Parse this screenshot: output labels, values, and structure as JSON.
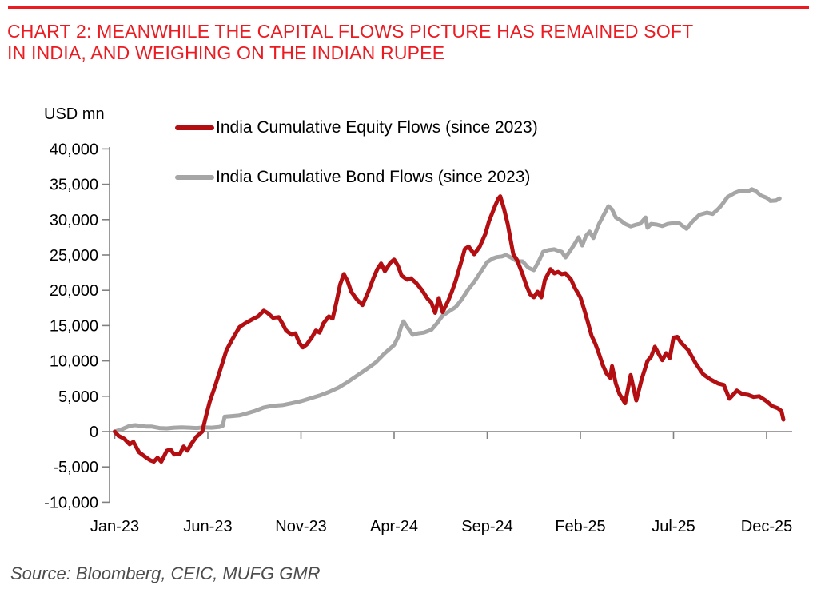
{
  "header": {
    "rule_color": "#ec1b21"
  },
  "title": {
    "line1": "CHART 2: MEANWHILE THE CAPITAL FLOWS PICTURE HAS REMAINED SOFT",
    "line2": "IN INDIA, AND WEIGHING ON THE INDIAN RUPEE",
    "color": "#ec1b21"
  },
  "chart_data": {
    "type": "line",
    "unit_label": "USD mn",
    "grid": "off",
    "legend_position": "top",
    "y_axis": {
      "range": [
        -10000,
        40000
      ],
      "tick_values": [
        40000,
        35000,
        30000,
        25000,
        20000,
        15000,
        10000,
        5000,
        0,
        -5000,
        -10000
      ],
      "tick_labels": [
        "40,000",
        "35,000",
        "30,000",
        "25,000",
        "20,000",
        "15,000",
        "10,000",
        "5,000",
        "0",
        "-5,000",
        "-10,000"
      ]
    },
    "x_axis": {
      "unit": "months since Jan-2023",
      "tick_months": [
        0,
        5,
        10,
        15,
        20,
        25,
        30,
        35
      ],
      "tick_labels": [
        "Jan-23",
        "Jun-23",
        "Nov-23",
        "Apr-24",
        "Sep-24",
        "Feb-25",
        "Jul-25",
        "Dec-25"
      ]
    },
    "legend": [
      {
        "label": "India Cumulative Equity Flows (since 2023)",
        "color": "#b30e12"
      },
      {
        "label": "India Cumulative Bond Flows (since 2023)",
        "color": "#a6a6a6"
      }
    ],
    "series": [
      {
        "name": "India Cumulative Equity Flows (since 2023)",
        "color": "#b30e12",
        "points": [
          [
            0,
            0
          ],
          [
            0.2,
            -600
          ],
          [
            0.5,
            -1000
          ],
          [
            0.8,
            -1800
          ],
          [
            1.0,
            -1450
          ],
          [
            1.3,
            -2900
          ],
          [
            1.6,
            -3500
          ],
          [
            1.9,
            -4050
          ],
          [
            2.1,
            -4250
          ],
          [
            2.3,
            -3700
          ],
          [
            2.5,
            -4250
          ],
          [
            2.8,
            -2700
          ],
          [
            3.0,
            -2550
          ],
          [
            3.2,
            -3250
          ],
          [
            3.5,
            -3150
          ],
          [
            3.7,
            -2100
          ],
          [
            3.9,
            -2700
          ],
          [
            4.1,
            -1800
          ],
          [
            4.4,
            -700
          ],
          [
            4.7,
            0
          ],
          [
            4.9,
            2200
          ],
          [
            5.1,
            4200
          ],
          [
            5.4,
            6500
          ],
          [
            5.7,
            9000
          ],
          [
            6.0,
            11500
          ],
          [
            6.3,
            13000
          ],
          [
            6.7,
            14800
          ],
          [
            7.0,
            15300
          ],
          [
            7.4,
            15900
          ],
          [
            7.7,
            16300
          ],
          [
            8.0,
            17100
          ],
          [
            8.2,
            16800
          ],
          [
            8.5,
            16100
          ],
          [
            8.8,
            16200
          ],
          [
            9.0,
            15300
          ],
          [
            9.2,
            14300
          ],
          [
            9.5,
            13700
          ],
          [
            9.7,
            13900
          ],
          [
            9.9,
            12600
          ],
          [
            10.1,
            11900
          ],
          [
            10.3,
            12300
          ],
          [
            10.6,
            13400
          ],
          [
            10.8,
            14300
          ],
          [
            11.0,
            14000
          ],
          [
            11.2,
            15300
          ],
          [
            11.5,
            16300
          ],
          [
            11.7,
            16000
          ],
          [
            11.9,
            18300
          ],
          [
            12.1,
            20800
          ],
          [
            12.3,
            22300
          ],
          [
            12.5,
            21300
          ],
          [
            12.7,
            19800
          ],
          [
            13.0,
            18700
          ],
          [
            13.3,
            17900
          ],
          [
            13.6,
            19700
          ],
          [
            13.9,
            21800
          ],
          [
            14.1,
            23000
          ],
          [
            14.3,
            23800
          ],
          [
            14.5,
            22700
          ],
          [
            14.8,
            23900
          ],
          [
            15.0,
            24350
          ],
          [
            15.2,
            23500
          ],
          [
            15.4,
            22100
          ],
          [
            15.7,
            21500
          ],
          [
            15.9,
            21700
          ],
          [
            16.2,
            21000
          ],
          [
            16.5,
            20000
          ],
          [
            16.8,
            18800
          ],
          [
            17.0,
            18250
          ],
          [
            17.2,
            16800
          ],
          [
            17.4,
            18900
          ],
          [
            17.6,
            16900
          ],
          [
            17.9,
            18500
          ],
          [
            18.1,
            19800
          ],
          [
            18.3,
            21300
          ],
          [
            18.6,
            24000
          ],
          [
            18.8,
            25850
          ],
          [
            19.0,
            26200
          ],
          [
            19.3,
            25100
          ],
          [
            19.6,
            26200
          ],
          [
            19.9,
            28000
          ],
          [
            20.1,
            29800
          ],
          [
            20.4,
            31800
          ],
          [
            20.6,
            33000
          ],
          [
            20.7,
            33300
          ],
          [
            20.9,
            31500
          ],
          [
            21.1,
            29400
          ],
          [
            21.3,
            26500
          ],
          [
            21.4,
            25100
          ],
          [
            21.6,
            24300
          ],
          [
            21.9,
            22250
          ],
          [
            22.1,
            20700
          ],
          [
            22.3,
            19450
          ],
          [
            22.5,
            19000
          ],
          [
            22.7,
            19800
          ],
          [
            22.9,
            19000
          ],
          [
            23.1,
            21500
          ],
          [
            23.4,
            23000
          ],
          [
            23.6,
            22400
          ],
          [
            23.8,
            22600
          ],
          [
            24.0,
            22300
          ],
          [
            24.2,
            22400
          ],
          [
            24.5,
            21500
          ],
          [
            24.7,
            20350
          ],
          [
            25.0,
            19000
          ],
          [
            25.2,
            17300
          ],
          [
            25.4,
            15500
          ],
          [
            25.6,
            13550
          ],
          [
            25.8,
            12450
          ],
          [
            26.0,
            11000
          ],
          [
            26.2,
            9400
          ],
          [
            26.4,
            8250
          ],
          [
            26.6,
            7600
          ],
          [
            26.7,
            9250
          ],
          [
            26.9,
            6800
          ],
          [
            27.1,
            5300
          ],
          [
            27.4,
            4000
          ],
          [
            27.7,
            8000
          ],
          [
            28.0,
            4400
          ],
          [
            28.3,
            7500
          ],
          [
            28.6,
            10000
          ],
          [
            28.8,
            10600
          ],
          [
            29.0,
            12000
          ],
          [
            29.2,
            11000
          ],
          [
            29.4,
            10100
          ],
          [
            29.6,
            11100
          ],
          [
            29.8,
            10400
          ],
          [
            30.0,
            13300
          ],
          [
            30.2,
            13400
          ],
          [
            30.4,
            12600
          ],
          [
            30.8,
            11500
          ],
          [
            31.2,
            9600
          ],
          [
            31.6,
            8100
          ],
          [
            32.0,
            7350
          ],
          [
            32.4,
            6800
          ],
          [
            32.7,
            6600
          ],
          [
            33.0,
            4650
          ],
          [
            33.4,
            5800
          ],
          [
            33.7,
            5300
          ],
          [
            34.0,
            5200
          ],
          [
            34.3,
            4900
          ],
          [
            34.6,
            5000
          ],
          [
            35.0,
            4300
          ],
          [
            35.3,
            3600
          ],
          [
            35.6,
            3300
          ],
          [
            35.8,
            2900
          ],
          [
            35.9,
            1700
          ]
        ]
      },
      {
        "name": "India Cumulative Bond Flows (since 2023)",
        "color": "#a6a6a6",
        "points": [
          [
            0,
            0
          ],
          [
            0.4,
            350
          ],
          [
            0.8,
            800
          ],
          [
            1.1,
            900
          ],
          [
            1.4,
            800
          ],
          [
            1.7,
            700
          ],
          [
            2.0,
            700
          ],
          [
            2.4,
            500
          ],
          [
            2.8,
            450
          ],
          [
            3.2,
            550
          ],
          [
            3.6,
            600
          ],
          [
            4.0,
            550
          ],
          [
            4.4,
            500
          ],
          [
            4.8,
            600
          ],
          [
            5.2,
            550
          ],
          [
            5.6,
            650
          ],
          [
            5.8,
            800
          ],
          [
            5.9,
            2100
          ],
          [
            6.3,
            2200
          ],
          [
            6.7,
            2300
          ],
          [
            7.0,
            2500
          ],
          [
            7.5,
            2900
          ],
          [
            8.0,
            3400
          ],
          [
            8.5,
            3650
          ],
          [
            9.0,
            3750
          ],
          [
            9.5,
            4000
          ],
          [
            10.0,
            4300
          ],
          [
            10.5,
            4700
          ],
          [
            11.0,
            5100
          ],
          [
            11.5,
            5600
          ],
          [
            12.0,
            6200
          ],
          [
            12.5,
            7000
          ],
          [
            13.0,
            7900
          ],
          [
            13.5,
            8800
          ],
          [
            14.0,
            9750
          ],
          [
            14.5,
            11100
          ],
          [
            15.0,
            12250
          ],
          [
            15.2,
            13300
          ],
          [
            15.4,
            15000
          ],
          [
            15.5,
            15600
          ],
          [
            15.7,
            14800
          ],
          [
            16.0,
            13700
          ],
          [
            16.3,
            13900
          ],
          [
            16.6,
            14000
          ],
          [
            17.0,
            14400
          ],
          [
            17.3,
            15300
          ],
          [
            17.6,
            16400
          ],
          [
            18.0,
            17100
          ],
          [
            18.3,
            17600
          ],
          [
            18.6,
            18600
          ],
          [
            19.0,
            20200
          ],
          [
            19.3,
            21200
          ],
          [
            19.6,
            22400
          ],
          [
            20.0,
            24000
          ],
          [
            20.3,
            24500
          ],
          [
            20.5,
            24700
          ],
          [
            20.8,
            24800
          ],
          [
            21.0,
            25000
          ],
          [
            21.3,
            24600
          ],
          [
            21.6,
            24100
          ],
          [
            21.9,
            24100
          ],
          [
            22.2,
            23200
          ],
          [
            22.5,
            22850
          ],
          [
            22.8,
            24300
          ],
          [
            23.0,
            25450
          ],
          [
            23.3,
            25700
          ],
          [
            23.6,
            25800
          ],
          [
            23.8,
            25600
          ],
          [
            24.0,
            25450
          ],
          [
            24.2,
            24650
          ],
          [
            24.5,
            25800
          ],
          [
            24.7,
            26600
          ],
          [
            24.9,
            27500
          ],
          [
            25.1,
            26350
          ],
          [
            25.3,
            27700
          ],
          [
            25.5,
            28300
          ],
          [
            25.7,
            27400
          ],
          [
            26.0,
            29400
          ],
          [
            26.3,
            30900
          ],
          [
            26.5,
            31900
          ],
          [
            26.7,
            31450
          ],
          [
            26.9,
            30300
          ],
          [
            27.1,
            30000
          ],
          [
            27.4,
            29400
          ],
          [
            27.7,
            29050
          ],
          [
            28.0,
            29300
          ],
          [
            28.2,
            29400
          ],
          [
            28.5,
            30300
          ],
          [
            28.6,
            28850
          ],
          [
            28.8,
            29400
          ],
          [
            29.1,
            29300
          ],
          [
            29.4,
            29100
          ],
          [
            29.7,
            29400
          ],
          [
            30.0,
            29500
          ],
          [
            30.3,
            29500
          ],
          [
            30.7,
            28700
          ],
          [
            31.0,
            29700
          ],
          [
            31.4,
            30700
          ],
          [
            31.8,
            31000
          ],
          [
            32.1,
            30800
          ],
          [
            32.4,
            31500
          ],
          [
            32.6,
            32100
          ],
          [
            32.9,
            33200
          ],
          [
            33.3,
            33800
          ],
          [
            33.6,
            34100
          ],
          [
            34.0,
            34000
          ],
          [
            34.2,
            34300
          ],
          [
            34.4,
            34100
          ],
          [
            34.7,
            33400
          ],
          [
            35.0,
            33100
          ],
          [
            35.2,
            32650
          ],
          [
            35.5,
            32700
          ],
          [
            35.7,
            33000
          ]
        ]
      }
    ]
  },
  "footer": {
    "source": "Source: Bloomberg, CEIC, MUFG GMR",
    "color": "#4d4d4d"
  }
}
